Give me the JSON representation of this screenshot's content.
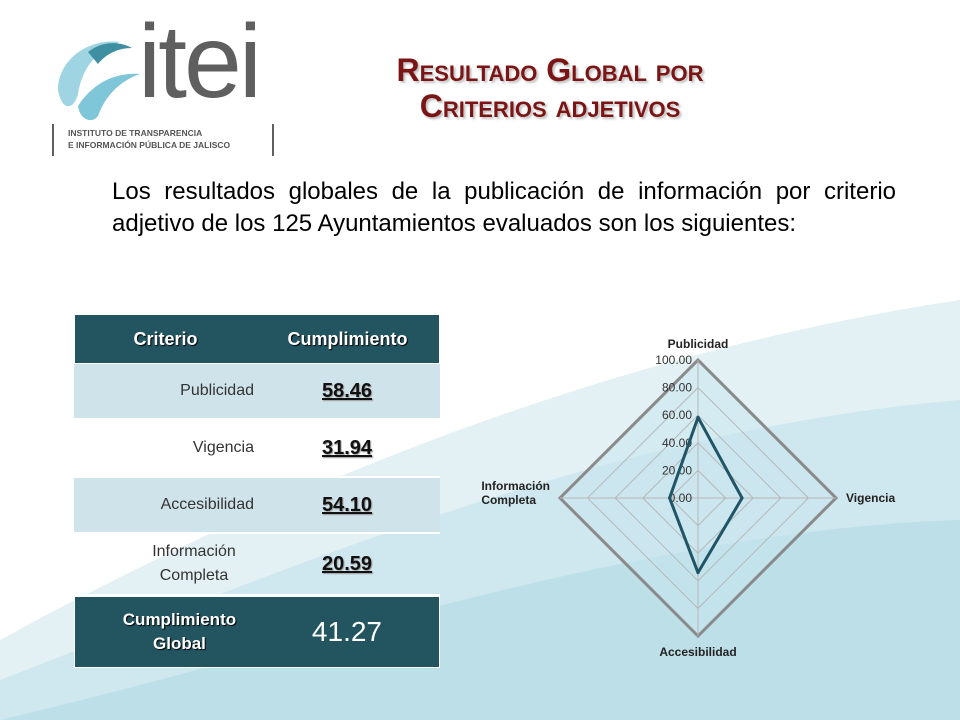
{
  "logo": {
    "word": "itei",
    "caption_line1": "INSTITUTO DE TRANSPARENCIA",
    "caption_line2": "E INFORMACIÓN PÚBLICA DE JALISCO",
    "colors": {
      "swoosh": "#7fc6d8",
      "swoosh_dark": "#3f8fa3",
      "text": "#5f5f5f"
    }
  },
  "title": {
    "line1": "Resultado Global por",
    "line2": "Criterios adjetivos",
    "color": "#7b1414"
  },
  "intro": "Los resultados globales de la publicación de información por criterio adjetivo de los 125 Ayuntamientos evaluados son los siguientes:",
  "table": {
    "headers": {
      "criterio": "Criterio",
      "cumplimiento": "Cumplimiento"
    },
    "rows": [
      {
        "criterio": "Publicidad",
        "valor": "58.46"
      },
      {
        "criterio": "Vigencia",
        "valor": "31.94"
      },
      {
        "criterio": "Accesibilidad",
        "valor": "54.10"
      },
      {
        "criterio": "Información Completa",
        "valor": "20.59"
      }
    ],
    "total": {
      "label": "Cumplimiento Global",
      "valor": "41.27"
    },
    "colors": {
      "header": "#235561",
      "shaded_row": "#cfe3ea"
    }
  },
  "chart_data": {
    "type": "radar",
    "axes": [
      "Publicidad",
      "Vigencia",
      "Accesibilidad",
      "Información Completa"
    ],
    "series": [
      {
        "values": [
          58.46,
          31.94,
          54.1,
          20.59
        ]
      }
    ],
    "rlim": [
      0,
      100
    ],
    "ticks": [
      0,
      20,
      40,
      60,
      80,
      100
    ],
    "tick_labels": [
      "0.00",
      "20.00",
      "40.00",
      "60.00",
      "80.00",
      "100.00"
    ],
    "grid": true,
    "legend": "none",
    "colors": {
      "series": "#1f5566",
      "grid": "#b7b7b7",
      "outer": "#8a8a8a",
      "fill": "#c9e6ee"
    }
  }
}
